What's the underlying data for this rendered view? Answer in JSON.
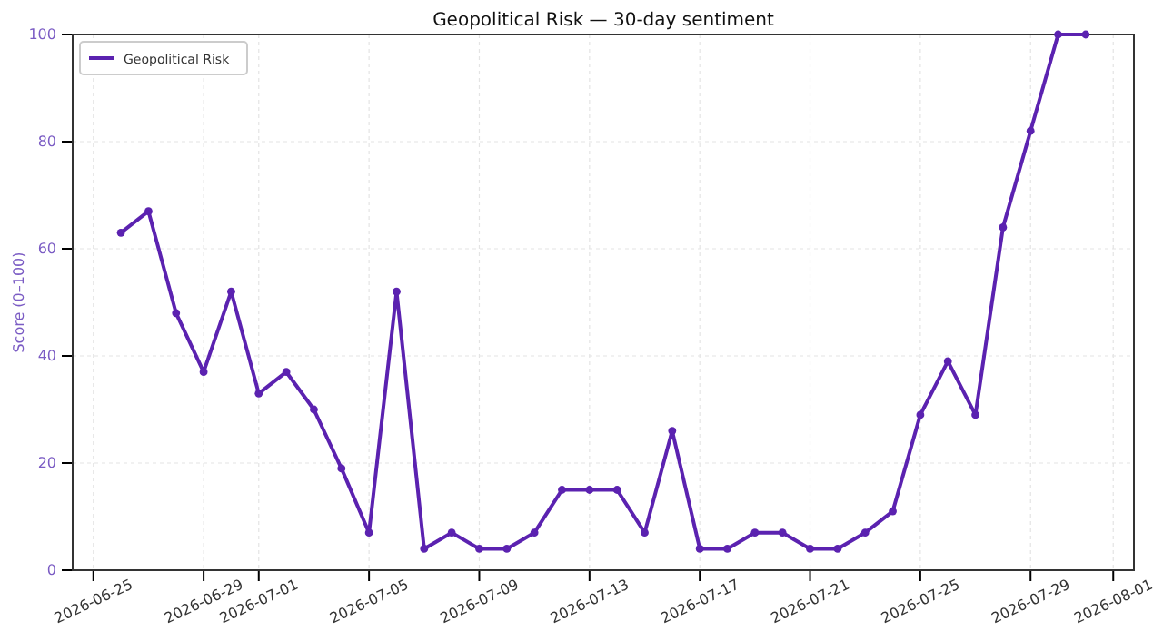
{
  "chart_data": {
    "type": "line",
    "title": "Geopolitical Risk — 30-day sentiment",
    "ylabel": "Score (0–100)",
    "x": [
      "2026-06-26",
      "2026-06-27",
      "2026-06-28",
      "2026-06-29",
      "2026-06-30",
      "2026-07-01",
      "2026-07-02",
      "2026-07-03",
      "2026-07-04",
      "2026-07-05",
      "2026-07-06",
      "2026-07-07",
      "2026-07-08",
      "2026-07-09",
      "2026-07-10",
      "2026-07-11",
      "2026-07-12",
      "2026-07-13",
      "2026-07-14",
      "2026-07-15",
      "2026-07-16",
      "2026-07-17",
      "2026-07-18",
      "2026-07-19",
      "2026-07-20",
      "2026-07-21",
      "2026-07-22",
      "2026-07-23",
      "2026-07-24",
      "2026-07-25",
      "2026-07-26",
      "2026-07-27",
      "2026-07-28",
      "2026-07-29",
      "2026-07-30",
      "2026-07-31"
    ],
    "series": [
      {
        "name": "Geopolitical Risk",
        "color": "#5b22b0",
        "values": [
          63,
          67,
          48,
          37,
          52,
          33,
          37,
          30,
          19,
          7,
          52,
          4,
          7,
          4,
          4,
          7,
          15,
          15,
          15,
          7,
          26,
          4,
          4,
          7,
          7,
          4,
          4,
          7,
          11,
          29,
          39,
          29,
          64,
          82,
          100,
          100
        ]
      }
    ],
    "xlim": [
      "2026-06-24T06:00",
      "2026-08-01T18:00"
    ],
    "xticks": [
      "2026-06-25",
      "2026-06-29",
      "2026-07-01",
      "2026-07-05",
      "2026-07-09",
      "2026-07-13",
      "2026-07-17",
      "2026-07-21",
      "2026-07-25",
      "2026-07-29",
      "2026-08-01"
    ],
    "ylim": [
      0,
      100
    ],
    "yticks": [
      0,
      20,
      40,
      60,
      80,
      100
    ],
    "grid": true,
    "legend": "top left",
    "marker": "circle",
    "line_style": "solid"
  }
}
